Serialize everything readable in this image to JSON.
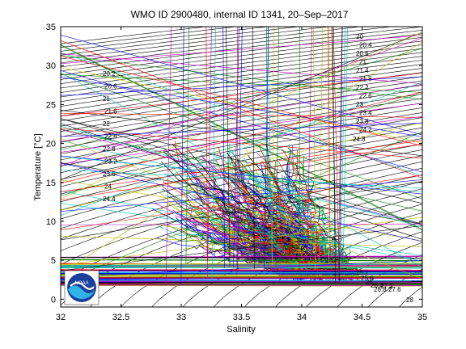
{
  "chart_data": {
    "type": "line",
    "title": "WMO ID 2900480, internal ID 1341, 20–Sep–2017",
    "xlabel": "Salinity",
    "ylabel": "Temperature [°C]",
    "xlim": [
      32,
      35
    ],
    "ylim": [
      -1,
      35
    ],
    "x_ticks": [
      32,
      32.5,
      33,
      33.5,
      34,
      34.5,
      35
    ],
    "x_tick_labels": [
      "32",
      "32.5",
      "33",
      "33.5",
      "34",
      "34.5",
      "35"
    ],
    "y_ticks": [
      0,
      5,
      10,
      15,
      20,
      25,
      30,
      35
    ],
    "y_tick_labels": [
      "0",
      "5",
      "10",
      "15",
      "20",
      "25",
      "30",
      "35"
    ],
    "grid": false,
    "density_isopleths": {
      "left_labels": [
        "20.2",
        "20.6",
        "21",
        "21.6",
        "22",
        "22.4",
        "22.8",
        "23.2",
        "23.6",
        "24",
        "24.4"
      ],
      "right_labels": [
        "20",
        "20.4",
        "20.6",
        "21",
        "21.4",
        "21.8",
        "22.2",
        "22.6",
        "23",
        "23.4",
        "23.8",
        "24.2"
      ],
      "interior_labels": [
        "24.8",
        "25.2",
        "25.6",
        "26",
        "26.4",
        "26.8",
        "27.2",
        "27.6",
        "28"
      ]
    },
    "profile_colors": [
      "#0000ff",
      "#008000",
      "#ff0000",
      "#00bfbf",
      "#bf00bf",
      "#bfbf00",
      "#000000"
    ],
    "logo": "noaa-logo"
  }
}
